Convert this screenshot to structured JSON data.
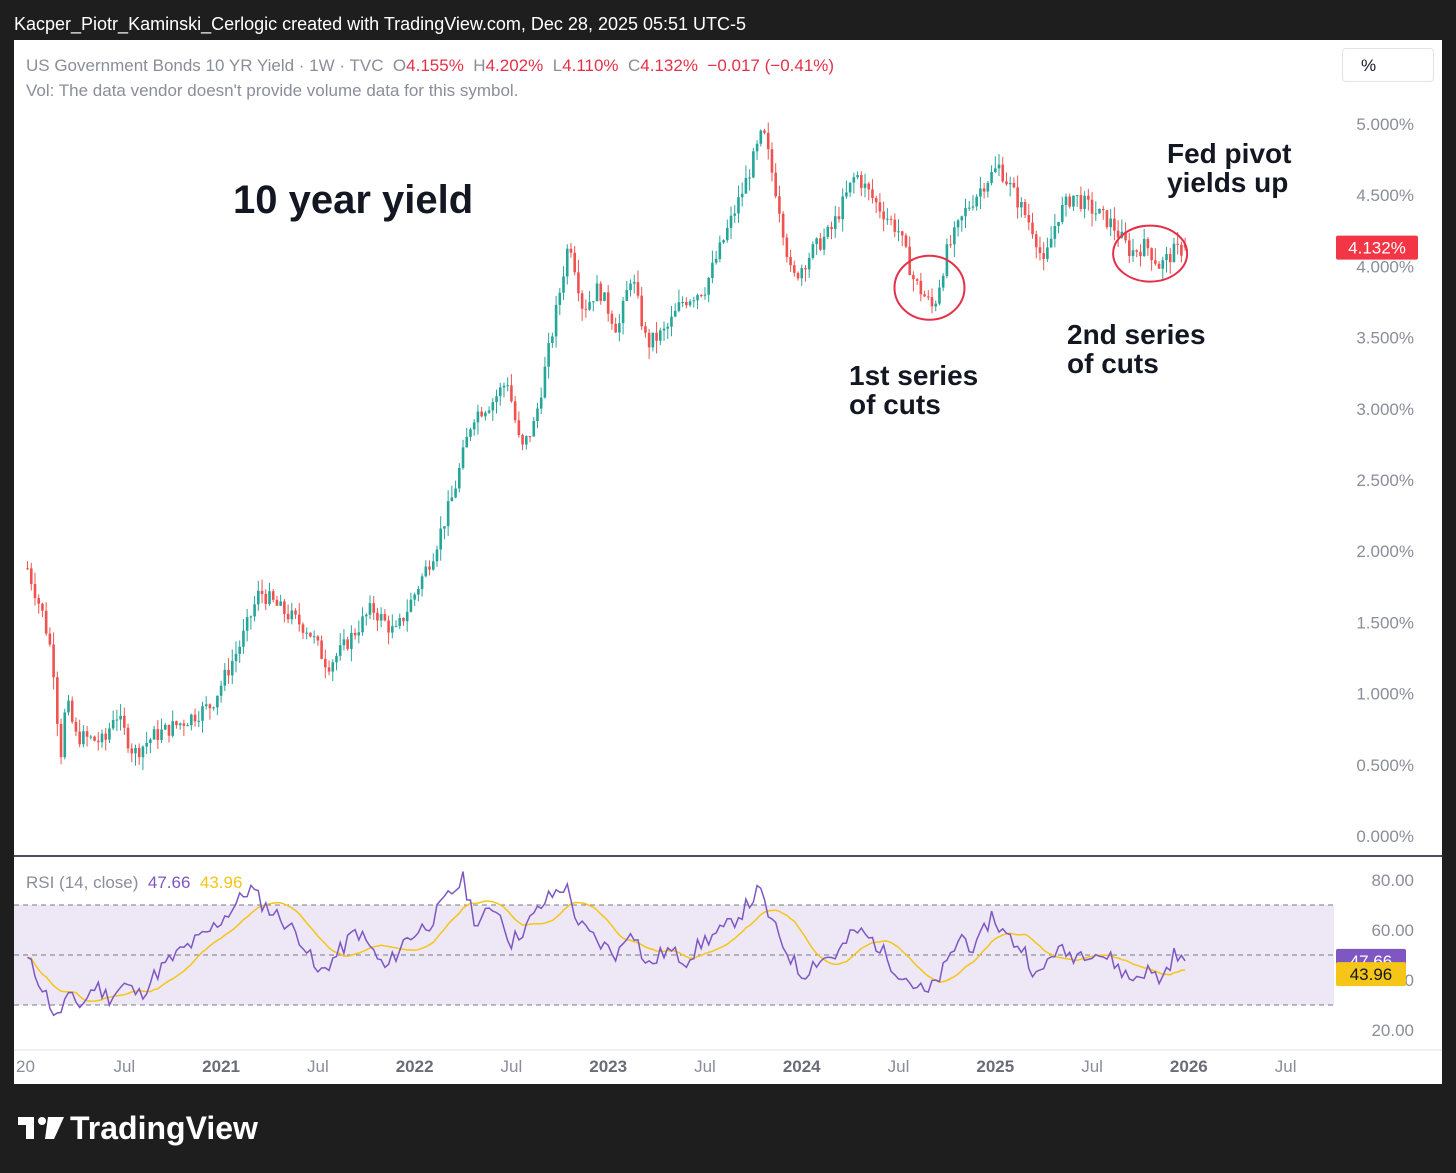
{
  "caption": "Kacper_Piotr_Kaminski_Cerlogic created with TradingView.com, Dec 28, 2025 05:51 UTC-5",
  "legend": {
    "symbol": "US Government Bonds 10 YR Yield · 1W · TVC",
    "open_label": "O",
    "open": "4.155%",
    "high_label": "H",
    "high": "4.202%",
    "low_label": "L",
    "low": "4.110%",
    "close_label": "C",
    "close": "4.132%",
    "change": "−0.017 (−0.41%)",
    "volume_note": "Vol: The data vendor doesn't provide volume data for this symbol."
  },
  "scale_button": "%",
  "rsi_legend": {
    "label": "RSI (14, close)",
    "rsi_value": "47.66",
    "ma_value": "43.96"
  },
  "annotations": {
    "title": "10 year yield",
    "fed_pivot_1": "Fed pivot",
    "fed_pivot_2": "yields up",
    "first_cuts_1": "1st series",
    "first_cuts_2": "of cuts",
    "second_cuts_1": "2nd series",
    "second_cuts_2": "of cuts"
  },
  "logo_text": "TradingView",
  "colors": {
    "up": "#26a69a",
    "down": "#ef5350",
    "rsi": "#7e57c2",
    "rsi_ma": "#f5c518",
    "rsi_band": "#ede7f6",
    "price_tag": "#f23645",
    "annotation_circle": "#e53048"
  },
  "chart_data": [
    {
      "type": "candlestick",
      "title": "US Government Bonds 10 YR Yield",
      "timeframe": "1W",
      "unit": "%",
      "y_ticks": [
        "5.000%",
        "4.500%",
        "4.000%",
        "3.500%",
        "3.000%",
        "2.500%",
        "2.000%",
        "1.500%",
        "1.000%",
        "0.500%",
        "0.000%"
      ],
      "ylim": [
        0,
        5.0
      ],
      "x_ticks": [
        "20",
        "Jul",
        "2021",
        "Jul",
        "2022",
        "Jul",
        "2023",
        "Jul",
        "2024",
        "Jul",
        "2025",
        "Jul",
        "2026",
        "Jul"
      ],
      "last_price_label": "4.132%",
      "last": {
        "open": 4.155,
        "high": 4.202,
        "low": 4.11,
        "close": 4.132
      },
      "weekly_close_path": [
        {
          "x": 2020.0,
          "y": 1.88
        },
        {
          "x": 2020.08,
          "y": 1.55
        },
        {
          "x": 2020.13,
          "y": 1.25
        },
        {
          "x": 2020.17,
          "y": 0.55
        },
        {
          "x": 2020.2,
          "y": 0.95
        },
        {
          "x": 2020.25,
          "y": 0.7
        },
        {
          "x": 2020.4,
          "y": 0.66
        },
        {
          "x": 2020.45,
          "y": 0.88
        },
        {
          "x": 2020.55,
          "y": 0.58
        },
        {
          "x": 2020.65,
          "y": 0.7
        },
        {
          "x": 2020.8,
          "y": 0.8
        },
        {
          "x": 2020.95,
          "y": 0.92
        },
        {
          "x": 2021.1,
          "y": 1.35
        },
        {
          "x": 2021.2,
          "y": 1.72
        },
        {
          "x": 2021.3,
          "y": 1.6
        },
        {
          "x": 2021.45,
          "y": 1.45
        },
        {
          "x": 2021.55,
          "y": 1.2
        },
        {
          "x": 2021.62,
          "y": 1.3
        },
        {
          "x": 2021.78,
          "y": 1.6
        },
        {
          "x": 2021.9,
          "y": 1.42
        },
        {
          "x": 2022.0,
          "y": 1.7
        },
        {
          "x": 2022.1,
          "y": 2.0
        },
        {
          "x": 2022.2,
          "y": 2.4
        },
        {
          "x": 2022.3,
          "y": 2.95
        },
        {
          "x": 2022.4,
          "y": 3.05
        },
        {
          "x": 2022.48,
          "y": 3.2
        },
        {
          "x": 2022.55,
          "y": 2.7
        },
        {
          "x": 2022.62,
          "y": 2.9
        },
        {
          "x": 2022.72,
          "y": 3.6
        },
        {
          "x": 2022.8,
          "y": 4.2
        },
        {
          "x": 2022.87,
          "y": 3.7
        },
        {
          "x": 2022.95,
          "y": 3.85
        },
        {
          "x": 2023.05,
          "y": 3.55
        },
        {
          "x": 2023.12,
          "y": 3.95
        },
        {
          "x": 2023.2,
          "y": 3.45
        },
        {
          "x": 2023.3,
          "y": 3.55
        },
        {
          "x": 2023.38,
          "y": 3.75
        },
        {
          "x": 2023.5,
          "y": 3.85
        },
        {
          "x": 2023.6,
          "y": 4.2
        },
        {
          "x": 2023.7,
          "y": 4.55
        },
        {
          "x": 2023.8,
          "y": 4.95
        },
        {
          "x": 2023.88,
          "y": 4.45
        },
        {
          "x": 2023.95,
          "y": 3.9
        },
        {
          "x": 2024.05,
          "y": 4.1
        },
        {
          "x": 2024.15,
          "y": 4.25
        },
        {
          "x": 2024.28,
          "y": 4.65
        },
        {
          "x": 2024.38,
          "y": 4.45
        },
        {
          "x": 2024.5,
          "y": 4.25
        },
        {
          "x": 2024.58,
          "y": 3.9
        },
        {
          "x": 2024.68,
          "y": 3.7
        },
        {
          "x": 2024.75,
          "y": 4.1
        },
        {
          "x": 2024.85,
          "y": 4.4
        },
        {
          "x": 2024.95,
          "y": 4.6
        },
        {
          "x": 2025.02,
          "y": 4.7
        },
        {
          "x": 2025.1,
          "y": 4.5
        },
        {
          "x": 2025.2,
          "y": 4.25
        },
        {
          "x": 2025.25,
          "y": 4.0
        },
        {
          "x": 2025.32,
          "y": 4.35
        },
        {
          "x": 2025.4,
          "y": 4.5
        },
        {
          "x": 2025.5,
          "y": 4.4
        },
        {
          "x": 2025.6,
          "y": 4.3
        },
        {
          "x": 2025.7,
          "y": 4.1
        },
        {
          "x": 2025.78,
          "y": 4.15
        },
        {
          "x": 2025.85,
          "y": 4.0
        },
        {
          "x": 2025.92,
          "y": 4.1
        },
        {
          "x": 2025.99,
          "y": 4.13
        }
      ]
    },
    {
      "type": "line",
      "title": "RSI (14, close)",
      "y_ticks": [
        "80.00",
        "60.00",
        "40.00",
        "20.00"
      ],
      "bands": [
        30,
        50,
        70
      ],
      "ylim": [
        20,
        80
      ],
      "series": [
        {
          "name": "RSI",
          "value_label": "47.66"
        },
        {
          "name": "RSI MA",
          "value_label": "43.96"
        }
      ],
      "rsi_path": [
        {
          "x": 2020.0,
          "y": 48
        },
        {
          "x": 2020.06,
          "y": 40
        },
        {
          "x": 2020.12,
          "y": 30
        },
        {
          "x": 2020.15,
          "y": 24
        },
        {
          "x": 2020.2,
          "y": 33
        },
        {
          "x": 2020.28,
          "y": 30
        },
        {
          "x": 2020.35,
          "y": 38
        },
        {
          "x": 2020.42,
          "y": 33
        },
        {
          "x": 2020.5,
          "y": 38
        },
        {
          "x": 2020.58,
          "y": 34
        },
        {
          "x": 2020.68,
          "y": 44
        },
        {
          "x": 2020.8,
          "y": 52
        },
        {
          "x": 2020.92,
          "y": 58
        },
        {
          "x": 2021.05,
          "y": 68
        },
        {
          "x": 2021.15,
          "y": 77
        },
        {
          "x": 2021.22,
          "y": 70
        },
        {
          "x": 2021.32,
          "y": 64
        },
        {
          "x": 2021.42,
          "y": 56
        },
        {
          "x": 2021.5,
          "y": 42
        },
        {
          "x": 2021.6,
          "y": 50
        },
        {
          "x": 2021.7,
          "y": 60
        },
        {
          "x": 2021.78,
          "y": 52
        },
        {
          "x": 2021.85,
          "y": 44
        },
        {
          "x": 2021.95,
          "y": 56
        },
        {
          "x": 2022.08,
          "y": 63
        },
        {
          "x": 2022.18,
          "y": 74
        },
        {
          "x": 2022.25,
          "y": 80
        },
        {
          "x": 2022.32,
          "y": 62
        },
        {
          "x": 2022.42,
          "y": 70
        },
        {
          "x": 2022.5,
          "y": 55
        },
        {
          "x": 2022.58,
          "y": 62
        },
        {
          "x": 2022.68,
          "y": 72
        },
        {
          "x": 2022.78,
          "y": 78
        },
        {
          "x": 2022.85,
          "y": 62
        },
        {
          "x": 2022.95,
          "y": 55
        },
        {
          "x": 2023.05,
          "y": 50
        },
        {
          "x": 2023.12,
          "y": 62
        },
        {
          "x": 2023.2,
          "y": 45
        },
        {
          "x": 2023.3,
          "y": 52
        },
        {
          "x": 2023.4,
          "y": 48
        },
        {
          "x": 2023.5,
          "y": 56
        },
        {
          "x": 2023.6,
          "y": 60
        },
        {
          "x": 2023.7,
          "y": 68
        },
        {
          "x": 2023.78,
          "y": 76
        },
        {
          "x": 2023.85,
          "y": 62
        },
        {
          "x": 2023.92,
          "y": 52
        },
        {
          "x": 2024.0,
          "y": 42
        },
        {
          "x": 2024.08,
          "y": 48
        },
        {
          "x": 2024.18,
          "y": 50
        },
        {
          "x": 2024.28,
          "y": 60
        },
        {
          "x": 2024.38,
          "y": 55
        },
        {
          "x": 2024.48,
          "y": 45
        },
        {
          "x": 2024.58,
          "y": 38
        },
        {
          "x": 2024.65,
          "y": 34
        },
        {
          "x": 2024.75,
          "y": 46
        },
        {
          "x": 2024.82,
          "y": 58
        },
        {
          "x": 2024.9,
          "y": 52
        },
        {
          "x": 2024.98,
          "y": 66
        },
        {
          "x": 2025.05,
          "y": 58
        },
        {
          "x": 2025.15,
          "y": 52
        },
        {
          "x": 2025.22,
          "y": 40
        },
        {
          "x": 2025.3,
          "y": 52
        },
        {
          "x": 2025.4,
          "y": 50
        },
        {
          "x": 2025.5,
          "y": 52
        },
        {
          "x": 2025.6,
          "y": 48
        },
        {
          "x": 2025.7,
          "y": 40
        },
        {
          "x": 2025.78,
          "y": 44
        },
        {
          "x": 2025.86,
          "y": 40
        },
        {
          "x": 2025.92,
          "y": 50
        },
        {
          "x": 2025.99,
          "y": 47.66
        }
      ]
    }
  ]
}
